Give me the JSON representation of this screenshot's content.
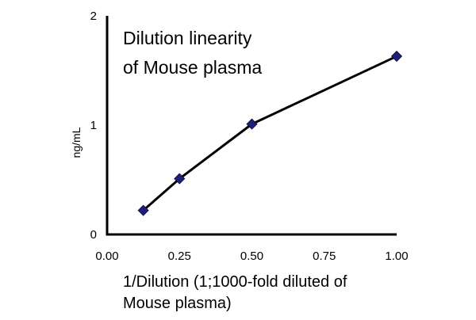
{
  "chart_data": {
    "type": "line",
    "title_lines": [
      "Dilution linearity",
      "of Mouse plasma"
    ],
    "xlabel_lines": [
      "1/Dilution (1;1000-fold diluted of",
      "Mouse plasma)"
    ],
    "ylabel": "ng/mL",
    "xlim": [
      0,
      1
    ],
    "ylim": [
      0,
      2
    ],
    "xticks": [
      0,
      0.25,
      0.5,
      0.75,
      1
    ],
    "xtick_labels": [
      "0.00",
      "0.25",
      "0.50",
      "0.75",
      "1.00"
    ],
    "yticks": [
      0,
      1,
      2
    ],
    "ytick_labels": [
      "0",
      "1",
      "2"
    ],
    "grid": false,
    "legend": "none",
    "series": [
      {
        "x": [
          0.125,
          0.25,
          0.5,
          1.0
        ],
        "y": [
          0.22,
          0.51,
          1.01,
          1.63
        ],
        "line_color": "#000000",
        "marker": "diamond",
        "marker_color": "#1f1f7a"
      }
    ]
  }
}
